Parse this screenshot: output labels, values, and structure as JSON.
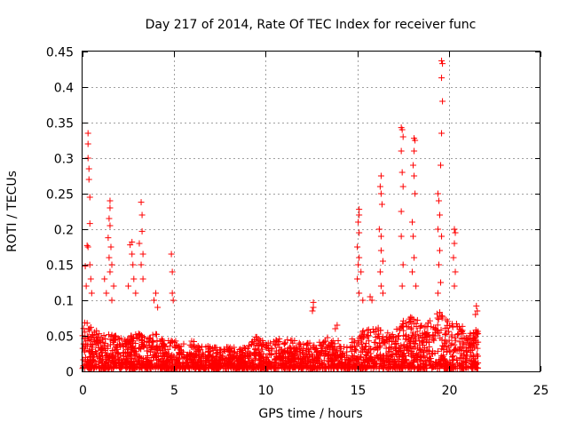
{
  "chart_data": {
    "type": "scatter",
    "title": "Day 217 of 2014, Rate Of TEC Index for receiver func",
    "xlabel": "GPS time / hours",
    "ylabel": "ROTI / TECUs",
    "xlim": [
      0,
      25
    ],
    "ylim": [
      0,
      0.45
    ],
    "grid": true,
    "marker": "+",
    "series_color": "#ff0000",
    "x_tick_labels": [
      "0",
      "5",
      "10",
      "15",
      "20",
      "25"
    ],
    "y_tick_labels": [
      "0",
      "0.05",
      "0.1",
      "0.15",
      "0.2",
      "0.25",
      "0.3",
      "0.35",
      "0.4",
      "0.45"
    ],
    "notable_points": [
      {
        "x": 0.3,
        "y": 0.335
      },
      {
        "x": 0.3,
        "y": 0.32
      },
      {
        "x": 0.3,
        "y": 0.3
      },
      {
        "x": 0.35,
        "y": 0.285
      },
      {
        "x": 0.35,
        "y": 0.27
      },
      {
        "x": 0.4,
        "y": 0.245
      },
      {
        "x": 0.4,
        "y": 0.208
      },
      {
        "x": 0.25,
        "y": 0.177
      },
      {
        "x": 0.3,
        "y": 0.175
      },
      {
        "x": 0.15,
        "y": 0.148
      },
      {
        "x": 0.4,
        "y": 0.15
      },
      {
        "x": 0.45,
        "y": 0.13
      },
      {
        "x": 0.2,
        "y": 0.12
      },
      {
        "x": 0.5,
        "y": 0.11
      },
      {
        "x": 1.5,
        "y": 0.24
      },
      {
        "x": 1.5,
        "y": 0.23
      },
      {
        "x": 1.45,
        "y": 0.215
      },
      {
        "x": 1.5,
        "y": 0.205
      },
      {
        "x": 1.4,
        "y": 0.188
      },
      {
        "x": 1.55,
        "y": 0.175
      },
      {
        "x": 1.45,
        "y": 0.16
      },
      {
        "x": 1.6,
        "y": 0.15
      },
      {
        "x": 1.5,
        "y": 0.14
      },
      {
        "x": 1.2,
        "y": 0.13
      },
      {
        "x": 1.7,
        "y": 0.12
      },
      {
        "x": 1.3,
        "y": 0.11
      },
      {
        "x": 1.6,
        "y": 0.1
      },
      {
        "x": 2.7,
        "y": 0.182
      },
      {
        "x": 2.6,
        "y": 0.178
      },
      {
        "x": 2.7,
        "y": 0.165
      },
      {
        "x": 2.75,
        "y": 0.15
      },
      {
        "x": 2.8,
        "y": 0.13
      },
      {
        "x": 2.5,
        "y": 0.12
      },
      {
        "x": 2.9,
        "y": 0.11
      },
      {
        "x": 3.2,
        "y": 0.238
      },
      {
        "x": 3.25,
        "y": 0.22
      },
      {
        "x": 3.25,
        "y": 0.197
      },
      {
        "x": 3.1,
        "y": 0.18
      },
      {
        "x": 3.3,
        "y": 0.165
      },
      {
        "x": 3.2,
        "y": 0.15
      },
      {
        "x": 3.3,
        "y": 0.13
      },
      {
        "x": 4.0,
        "y": 0.11
      },
      {
        "x": 3.9,
        "y": 0.1
      },
      {
        "x": 4.1,
        "y": 0.09
      },
      {
        "x": 4.85,
        "y": 0.165
      },
      {
        "x": 4.9,
        "y": 0.14
      },
      {
        "x": 4.9,
        "y": 0.11
      },
      {
        "x": 4.95,
        "y": 0.1
      },
      {
        "x": 12.6,
        "y": 0.097
      },
      {
        "x": 12.6,
        "y": 0.09
      },
      {
        "x": 12.55,
        "y": 0.085
      },
      {
        "x": 13.8,
        "y": 0.06
      },
      {
        "x": 13.9,
        "y": 0.065
      },
      {
        "x": 15.1,
        "y": 0.228
      },
      {
        "x": 15.1,
        "y": 0.22
      },
      {
        "x": 15.05,
        "y": 0.21
      },
      {
        "x": 15.1,
        "y": 0.195
      },
      {
        "x": 15.0,
        "y": 0.175
      },
      {
        "x": 15.1,
        "y": 0.16
      },
      {
        "x": 15.05,
        "y": 0.15
      },
      {
        "x": 15.2,
        "y": 0.14
      },
      {
        "x": 15.0,
        "y": 0.13
      },
      {
        "x": 15.1,
        "y": 0.11
      },
      {
        "x": 15.3,
        "y": 0.1
      },
      {
        "x": 16.3,
        "y": 0.275
      },
      {
        "x": 16.25,
        "y": 0.26
      },
      {
        "x": 16.3,
        "y": 0.25
      },
      {
        "x": 16.35,
        "y": 0.235
      },
      {
        "x": 16.2,
        "y": 0.2
      },
      {
        "x": 16.3,
        "y": 0.19
      },
      {
        "x": 16.3,
        "y": 0.17
      },
      {
        "x": 16.4,
        "y": 0.155
      },
      {
        "x": 16.25,
        "y": 0.14
      },
      {
        "x": 16.3,
        "y": 0.12
      },
      {
        "x": 16.4,
        "y": 0.11
      },
      {
        "x": 15.7,
        "y": 0.105
      },
      {
        "x": 15.8,
        "y": 0.1
      },
      {
        "x": 17.4,
        "y": 0.343
      },
      {
        "x": 17.45,
        "y": 0.34
      },
      {
        "x": 17.5,
        "y": 0.33
      },
      {
        "x": 17.4,
        "y": 0.31
      },
      {
        "x": 17.45,
        "y": 0.28
      },
      {
        "x": 17.5,
        "y": 0.26
      },
      {
        "x": 17.4,
        "y": 0.225
      },
      {
        "x": 17.4,
        "y": 0.19
      },
      {
        "x": 17.5,
        "y": 0.15
      },
      {
        "x": 17.45,
        "y": 0.12
      },
      {
        "x": 18.1,
        "y": 0.328
      },
      {
        "x": 18.15,
        "y": 0.325
      },
      {
        "x": 18.1,
        "y": 0.31
      },
      {
        "x": 18.05,
        "y": 0.29
      },
      {
        "x": 18.1,
        "y": 0.275
      },
      {
        "x": 18.15,
        "y": 0.25
      },
      {
        "x": 18.0,
        "y": 0.21
      },
      {
        "x": 18.05,
        "y": 0.19
      },
      {
        "x": 18.1,
        "y": 0.16
      },
      {
        "x": 18.0,
        "y": 0.14
      },
      {
        "x": 18.2,
        "y": 0.12
      },
      {
        "x": 19.6,
        "y": 0.437
      },
      {
        "x": 19.65,
        "y": 0.433
      },
      {
        "x": 19.6,
        "y": 0.413
      },
      {
        "x": 19.65,
        "y": 0.38
      },
      {
        "x": 19.6,
        "y": 0.335
      },
      {
        "x": 19.55,
        "y": 0.29
      },
      {
        "x": 19.4,
        "y": 0.25
      },
      {
        "x": 19.45,
        "y": 0.24
      },
      {
        "x": 19.5,
        "y": 0.22
      },
      {
        "x": 19.4,
        "y": 0.2
      },
      {
        "x": 19.6,
        "y": 0.19
      },
      {
        "x": 19.5,
        "y": 0.17
      },
      {
        "x": 19.45,
        "y": 0.15
      },
      {
        "x": 19.55,
        "y": 0.125
      },
      {
        "x": 19.4,
        "y": 0.11
      },
      {
        "x": 20.3,
        "y": 0.2
      },
      {
        "x": 20.35,
        "y": 0.195
      },
      {
        "x": 20.3,
        "y": 0.18
      },
      {
        "x": 20.25,
        "y": 0.16
      },
      {
        "x": 20.35,
        "y": 0.14
      },
      {
        "x": 20.3,
        "y": 0.12
      },
      {
        "x": 21.5,
        "y": 0.092
      },
      {
        "x": 21.55,
        "y": 0.085
      },
      {
        "x": 21.45,
        "y": 0.08
      }
    ],
    "baseline_envelope": [
      {
        "x": 0.0,
        "y": 0.07
      },
      {
        "x": 0.5,
        "y": 0.06
      },
      {
        "x": 1.0,
        "y": 0.05
      },
      {
        "x": 1.5,
        "y": 0.05
      },
      {
        "x": 2.0,
        "y": 0.045
      },
      {
        "x": 2.5,
        "y": 0.045
      },
      {
        "x": 3.0,
        "y": 0.05
      },
      {
        "x": 3.5,
        "y": 0.045
      },
      {
        "x": 4.0,
        "y": 0.05
      },
      {
        "x": 4.5,
        "y": 0.04
      },
      {
        "x": 5.0,
        "y": 0.04
      },
      {
        "x": 5.5,
        "y": 0.035
      },
      {
        "x": 6.0,
        "y": 0.04
      },
      {
        "x": 6.5,
        "y": 0.035
      },
      {
        "x": 7.0,
        "y": 0.03
      },
      {
        "x": 7.5,
        "y": 0.03
      },
      {
        "x": 8.0,
        "y": 0.03
      },
      {
        "x": 8.5,
        "y": 0.03
      },
      {
        "x": 9.0,
        "y": 0.03
      },
      {
        "x": 9.5,
        "y": 0.05
      },
      {
        "x": 10.0,
        "y": 0.035
      },
      {
        "x": 10.5,
        "y": 0.04
      },
      {
        "x": 11.0,
        "y": 0.045
      },
      {
        "x": 11.5,
        "y": 0.04
      },
      {
        "x": 12.0,
        "y": 0.035
      },
      {
        "x": 12.5,
        "y": 0.045
      },
      {
        "x": 13.0,
        "y": 0.04
      },
      {
        "x": 13.5,
        "y": 0.045
      },
      {
        "x": 14.0,
        "y": 0.04
      },
      {
        "x": 14.5,
        "y": 0.035
      },
      {
        "x": 15.0,
        "y": 0.05
      },
      {
        "x": 15.5,
        "y": 0.055
      },
      {
        "x": 16.0,
        "y": 0.06
      },
      {
        "x": 16.5,
        "y": 0.05
      },
      {
        "x": 17.0,
        "y": 0.055
      },
      {
        "x": 17.5,
        "y": 0.07
      },
      {
        "x": 18.0,
        "y": 0.075
      },
      {
        "x": 18.5,
        "y": 0.065
      },
      {
        "x": 19.0,
        "y": 0.07
      },
      {
        "x": 19.5,
        "y": 0.08
      },
      {
        "x": 20.0,
        "y": 0.065
      },
      {
        "x": 20.5,
        "y": 0.07
      },
      {
        "x": 21.0,
        "y": 0.05
      },
      {
        "x": 21.5,
        "y": 0.055
      }
    ],
    "data_x_range": [
      0.0,
      21.6
    ]
  }
}
